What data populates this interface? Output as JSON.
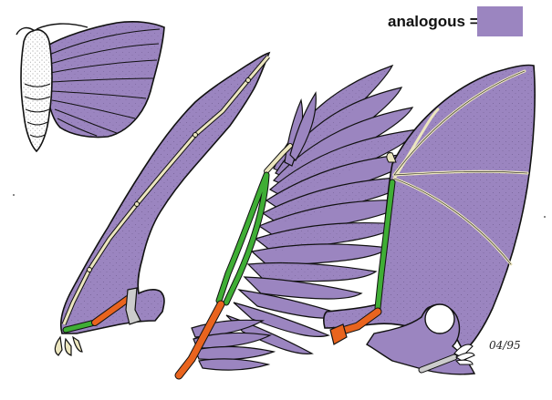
{
  "legend": {
    "label": "analogous =",
    "swatch_color": "#9b85c0"
  },
  "signature": "04/95",
  "palette": {
    "membrane": "#9b85c0",
    "membrane_dots": "#4a3b66",
    "outline": "#111111",
    "bone_pale": "#ece6bf",
    "bone_green": "#3fae35",
    "bone_orange": "#e9641e",
    "bone_grey": "#cccccc",
    "moth_body": "#ffffff"
  },
  "panels": [
    "moth",
    "pterosaur-wing",
    "bird-wing",
    "bat-wing"
  ]
}
